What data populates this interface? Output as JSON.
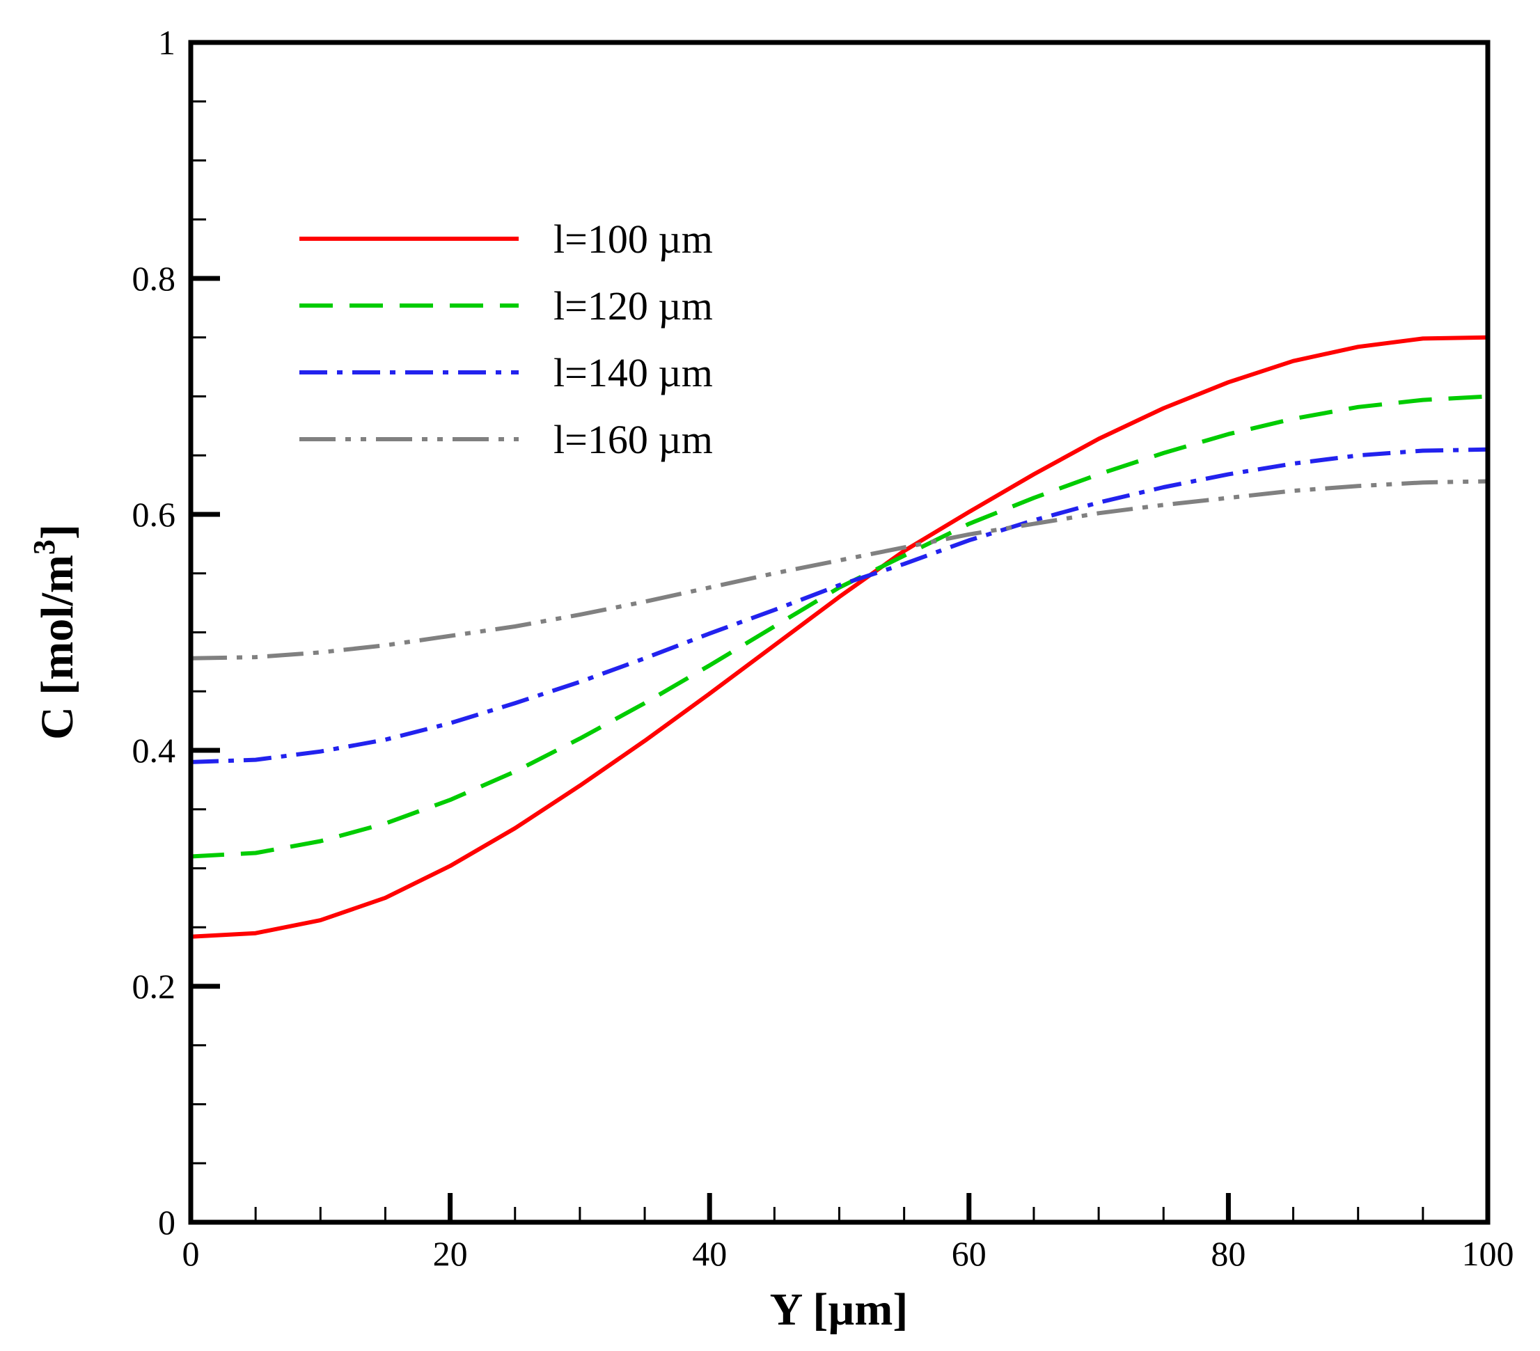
{
  "chart_data": {
    "type": "line",
    "title": "",
    "xlabel": "Y [µm]",
    "ylabel_main": "C [mol/m",
    "ylabel_sup": "3",
    "ylabel_close": "]",
    "xlim": [
      0,
      100
    ],
    "ylim": [
      0,
      1
    ],
    "x_ticks": [
      0,
      20,
      40,
      60,
      80,
      100
    ],
    "y_ticks": [
      0,
      0.2,
      0.4,
      0.6,
      0.8,
      1
    ],
    "x_tick_labels": [
      "0",
      "20",
      "40",
      "60",
      "80",
      "100"
    ],
    "y_tick_labels": [
      "0",
      "0.2",
      "0.4",
      "0.6",
      "0.8",
      "1"
    ],
    "grid": false,
    "legend_position": "top-left",
    "series": [
      {
        "name": "l=100 µm",
        "color": "#ff0000",
        "style": "solid",
        "x": [
          0,
          5,
          10,
          15,
          20,
          25,
          30,
          35,
          40,
          45,
          50,
          55,
          60,
          65,
          70,
          75,
          80,
          85,
          90,
          95,
          100
        ],
        "y": [
          0.242,
          0.245,
          0.256,
          0.275,
          0.302,
          0.334,
          0.37,
          0.408,
          0.448,
          0.489,
          0.53,
          0.569,
          0.602,
          0.634,
          0.664,
          0.69,
          0.712,
          0.73,
          0.742,
          0.749,
          0.75
        ]
      },
      {
        "name": "l=120 µm",
        "color": "#00cc00",
        "style": "dashed",
        "x": [
          0,
          5,
          10,
          15,
          20,
          25,
          30,
          35,
          40,
          45,
          50,
          55,
          60,
          65,
          70,
          75,
          80,
          85,
          90,
          95,
          100
        ],
        "y": [
          0.31,
          0.313,
          0.323,
          0.338,
          0.358,
          0.382,
          0.41,
          0.44,
          0.472,
          0.505,
          0.538,
          0.565,
          0.592,
          0.614,
          0.634,
          0.652,
          0.668,
          0.681,
          0.691,
          0.697,
          0.7
        ]
      },
      {
        "name": "l=140 µm",
        "color": "#2222ee",
        "style": "dashdot",
        "x": [
          0,
          5,
          10,
          15,
          20,
          25,
          30,
          35,
          40,
          45,
          50,
          55,
          60,
          65,
          70,
          75,
          80,
          85,
          90,
          95,
          100
        ],
        "y": [
          0.39,
          0.392,
          0.399,
          0.409,
          0.423,
          0.44,
          0.458,
          0.478,
          0.499,
          0.519,
          0.54,
          0.558,
          0.578,
          0.595,
          0.61,
          0.623,
          0.634,
          0.643,
          0.65,
          0.654,
          0.655
        ]
      },
      {
        "name": "l=160 µm",
        "color": "#808080",
        "style": "dashdotdot",
        "x": [
          0,
          5,
          10,
          15,
          20,
          25,
          30,
          35,
          40,
          45,
          50,
          55,
          60,
          65,
          70,
          75,
          80,
          85,
          90,
          95,
          100
        ],
        "y": [
          0.478,
          0.479,
          0.483,
          0.489,
          0.497,
          0.505,
          0.515,
          0.526,
          0.538,
          0.55,
          0.561,
          0.572,
          0.583,
          0.592,
          0.601,
          0.608,
          0.614,
          0.62,
          0.624,
          0.627,
          0.628
        ]
      }
    ]
  }
}
